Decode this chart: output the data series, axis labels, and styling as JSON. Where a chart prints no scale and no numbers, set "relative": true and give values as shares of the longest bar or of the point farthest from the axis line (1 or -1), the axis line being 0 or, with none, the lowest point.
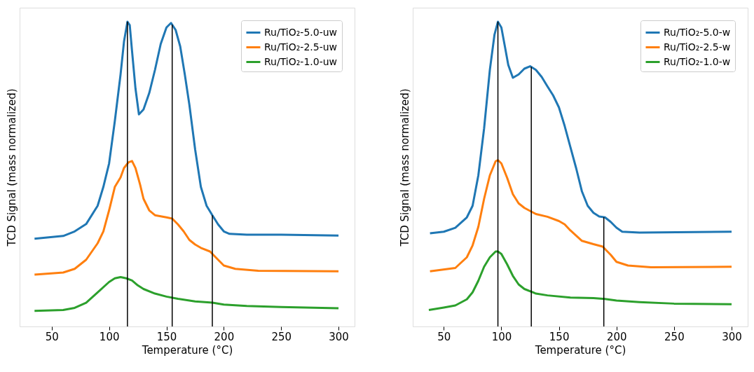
{
  "chart_data": [
    {
      "type": "line",
      "relative": true,
      "xlabel": "Temperature (°C)",
      "ylabel": "TCD Signal (mass normalized)",
      "xlim": [
        22,
        314
      ],
      "xticks": [
        50,
        100,
        150,
        200,
        250,
        300
      ],
      "tick_labels": "x",
      "grid": false,
      "legend": "top right",
      "marker": "none",
      "line_style": "solid",
      "series": [
        {
          "name": "Ru/TiO₂-5.0-uw",
          "color": "#1f77b4",
          "x": [
            35,
            60,
            70,
            80,
            90,
            95,
            100,
            105,
            110,
            113,
            116,
            118,
            120,
            123,
            126,
            130,
            135,
            140,
            145,
            150,
            154,
            158,
            162,
            166,
            170,
            175,
            180,
            185,
            190,
            195,
            200,
            205,
            220,
            250,
            300
          ],
          "values": [
            0.288,
            0.297,
            0.312,
            0.336,
            0.396,
            0.458,
            0.535,
            0.674,
            0.827,
            0.935,
            1.0,
            0.989,
            0.904,
            0.781,
            0.696,
            0.712,
            0.766,
            0.842,
            0.927,
            0.981,
            0.996,
            0.973,
            0.919,
            0.827,
            0.727,
            0.581,
            0.458,
            0.396,
            0.365,
            0.335,
            0.312,
            0.304,
            0.301,
            0.301,
            0.298
          ]
        },
        {
          "name": "Ru/TiO₂-2.5-uw",
          "color": "#ff7f0e",
          "x": [
            35,
            60,
            70,
            80,
            90,
            95,
            100,
            105,
            110,
            113,
            117,
            120,
            123,
            127,
            130,
            135,
            140,
            150,
            155,
            160,
            165,
            170,
            175,
            180,
            188,
            195,
            200,
            210,
            230,
            300
          ],
          "values": [
            0.17,
            0.177,
            0.189,
            0.219,
            0.273,
            0.312,
            0.381,
            0.458,
            0.489,
            0.52,
            0.539,
            0.543,
            0.52,
            0.466,
            0.419,
            0.381,
            0.365,
            0.358,
            0.354,
            0.335,
            0.312,
            0.284,
            0.269,
            0.258,
            0.246,
            0.219,
            0.2,
            0.189,
            0.183,
            0.181
          ]
        },
        {
          "name": "Ru/TiO₂-1.0-uw",
          "color": "#2ca02c",
          "x": [
            35,
            60,
            70,
            80,
            90,
            100,
            105,
            110,
            115,
            120,
            125,
            130,
            140,
            150,
            160,
            175,
            190,
            200,
            220,
            250,
            300
          ],
          "values": [
            0.051,
            0.054,
            0.061,
            0.078,
            0.112,
            0.146,
            0.158,
            0.162,
            0.158,
            0.151,
            0.135,
            0.123,
            0.108,
            0.098,
            0.091,
            0.082,
            0.078,
            0.072,
            0.067,
            0.064,
            0.06
          ]
        }
      ],
      "ref_lines": [
        {
          "axis": "x",
          "value": 116,
          "color": "#000000"
        },
        {
          "axis": "x",
          "value": 155,
          "color": "#000000"
        },
        {
          "axis": "x",
          "value": 190,
          "color": "#000000"
        }
      ]
    },
    {
      "type": "line",
      "relative": true,
      "xlabel": "Temperature (°C)",
      "ylabel": "TCD Signal (mass normalized)",
      "xlim": [
        23,
        314
      ],
      "xticks": [
        50,
        100,
        150,
        200,
        250,
        300
      ],
      "tick_labels": "x",
      "grid": false,
      "legend": "top right",
      "marker": "none",
      "line_style": "solid",
      "series": [
        {
          "name": "Ru/TiO₂-5.0-w",
          "color": "#1f77b4",
          "x": [
            38,
            50,
            60,
            70,
            75,
            80,
            85,
            90,
            94,
            97,
            100,
            103,
            106,
            110,
            115,
            120,
            125,
            130,
            135,
            140,
            145,
            150,
            155,
            160,
            165,
            170,
            175,
            180,
            185,
            190,
            195,
            200,
            205,
            220,
            300
          ],
          "values": [
            0.306,
            0.311,
            0.324,
            0.358,
            0.396,
            0.496,
            0.65,
            0.842,
            0.957,
            1.0,
            0.981,
            0.92,
            0.858,
            0.816,
            0.827,
            0.846,
            0.854,
            0.842,
            0.819,
            0.788,
            0.758,
            0.719,
            0.658,
            0.588,
            0.519,
            0.443,
            0.396,
            0.373,
            0.361,
            0.358,
            0.343,
            0.324,
            0.311,
            0.308,
            0.311
          ]
        },
        {
          "name": "Ru/TiO₂-2.5-w",
          "color": "#ff7f0e",
          "x": [
            38,
            60,
            70,
            75,
            80,
            85,
            90,
            95,
            97,
            100,
            105,
            110,
            115,
            120,
            130,
            140,
            150,
            155,
            160,
            170,
            180,
            188,
            195,
            200,
            210,
            230,
            300
          ],
          "values": [
            0.181,
            0.192,
            0.227,
            0.266,
            0.327,
            0.419,
            0.496,
            0.542,
            0.546,
            0.535,
            0.488,
            0.434,
            0.404,
            0.389,
            0.369,
            0.36,
            0.346,
            0.335,
            0.315,
            0.281,
            0.27,
            0.262,
            0.235,
            0.212,
            0.2,
            0.194,
            0.196
          ]
        },
        {
          "name": "Ru/TiO₂-1.0-w",
          "color": "#2ca02c",
          "x": [
            37,
            50,
            60,
            70,
            75,
            80,
            85,
            90,
            95,
            97,
            100,
            105,
            110,
            115,
            120,
            130,
            140,
            160,
            180,
            190,
            200,
            220,
            250,
            300
          ],
          "values": [
            0.054,
            0.062,
            0.069,
            0.089,
            0.112,
            0.15,
            0.196,
            0.227,
            0.246,
            0.246,
            0.238,
            0.204,
            0.166,
            0.138,
            0.123,
            0.108,
            0.102,
            0.095,
            0.093,
            0.09,
            0.085,
            0.08,
            0.075,
            0.073
          ]
        }
      ],
      "ref_lines": [
        {
          "axis": "x",
          "value": 97,
          "color": "#000000"
        },
        {
          "axis": "x",
          "value": 126,
          "color": "#000000"
        },
        {
          "axis": "x",
          "value": 189,
          "color": "#000000"
        }
      ]
    }
  ]
}
